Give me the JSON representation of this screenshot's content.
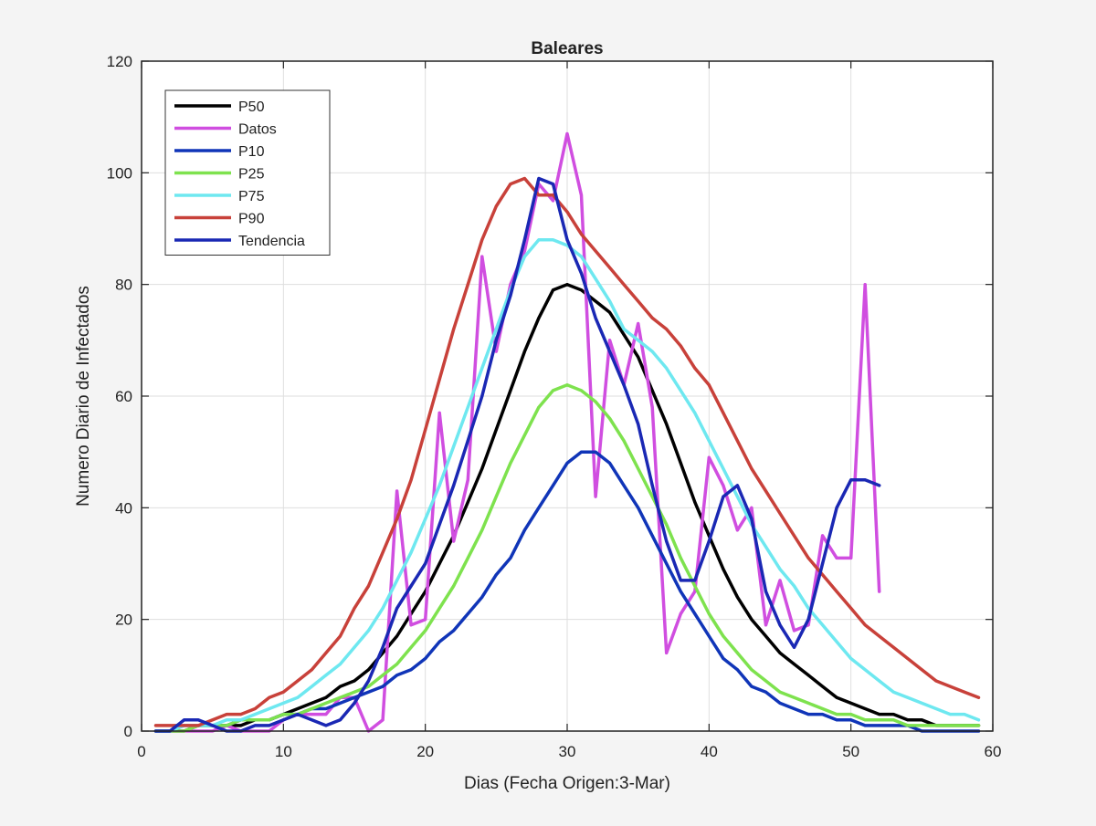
{
  "chart_data": {
    "type": "line",
    "title": "Baleares",
    "xlabel": "Dias (Fecha Origen:3-Mar)",
    "ylabel": "Numero Diario de Infectados",
    "xlim": [
      0,
      60
    ],
    "ylim": [
      0,
      120
    ],
    "xticks": [
      0,
      10,
      20,
      30,
      40,
      50,
      60
    ],
    "yticks": [
      0,
      20,
      40,
      60,
      80,
      100,
      120
    ],
    "grid": true,
    "legend_position": "top-left",
    "series": [
      {
        "name": "P50",
        "color": "#000000",
        "x": [
          1,
          2,
          3,
          4,
          5,
          6,
          7,
          8,
          9,
          10,
          11,
          12,
          13,
          14,
          15,
          16,
          17,
          18,
          19,
          20,
          21,
          22,
          23,
          24,
          25,
          26,
          27,
          28,
          29,
          30,
          31,
          32,
          33,
          34,
          35,
          36,
          37,
          38,
          39,
          40,
          41,
          42,
          43,
          44,
          45,
          46,
          47,
          48,
          49,
          50,
          51,
          52,
          53,
          54,
          55,
          56,
          57,
          58,
          59
        ],
        "y": [
          0,
          0,
          0,
          1,
          1,
          1,
          1,
          2,
          2,
          3,
          4,
          5,
          6,
          8,
          9,
          11,
          14,
          17,
          21,
          25,
          30,
          35,
          41,
          47,
          54,
          61,
          68,
          74,
          79,
          80,
          79,
          77,
          75,
          71,
          67,
          61,
          55,
          48,
          41,
          35,
          29,
          24,
          20,
          17,
          14,
          12,
          10,
          8,
          6,
          5,
          4,
          3,
          3,
          2,
          2,
          1,
          1,
          1,
          1
        ]
      },
      {
        "name": "Datos",
        "color": "#d04ee0",
        "x": [
          1,
          2,
          3,
          4,
          5,
          6,
          7,
          8,
          9,
          10,
          11,
          12,
          13,
          14,
          15,
          16,
          17,
          18,
          19,
          20,
          21,
          22,
          23,
          24,
          25,
          26,
          27,
          28,
          29,
          30,
          31,
          32,
          33,
          34,
          35,
          36,
          37,
          38,
          39,
          40,
          41,
          42,
          43,
          44,
          45,
          46,
          47,
          48,
          49,
          50,
          51,
          52
        ],
        "y": [
          0,
          0,
          0,
          0,
          0,
          1,
          0,
          0,
          0,
          2,
          3,
          3,
          3,
          6,
          6,
          0,
          2,
          43,
          19,
          20,
          57,
          34,
          45,
          85,
          68,
          80,
          86,
          98,
          95,
          107,
          96,
          42,
          70,
          62,
          73,
          58,
          14,
          21,
          25,
          49,
          44,
          36,
          40,
          19,
          27,
          18,
          19,
          35,
          31,
          31,
          80,
          25
        ]
      },
      {
        "name": "P10",
        "color": "#1035b8",
        "x": [
          1,
          2,
          3,
          4,
          5,
          6,
          7,
          8,
          9,
          10,
          11,
          12,
          13,
          14,
          15,
          16,
          17,
          18,
          19,
          20,
          21,
          22,
          23,
          24,
          25,
          26,
          27,
          28,
          29,
          30,
          31,
          32,
          33,
          34,
          35,
          36,
          37,
          38,
          39,
          40,
          41,
          42,
          43,
          44,
          45,
          46,
          47,
          48,
          49,
          50,
          51,
          52,
          53,
          54,
          55,
          56,
          57,
          58,
          59
        ],
        "y": [
          0,
          0,
          1,
          1,
          1,
          1,
          2,
          2,
          2,
          3,
          3,
          4,
          4,
          5,
          6,
          7,
          8,
          10,
          11,
          13,
          16,
          18,
          21,
          24,
          28,
          31,
          36,
          40,
          44,
          48,
          50,
          50,
          48,
          44,
          40,
          35,
          30,
          25,
          21,
          17,
          13,
          11,
          8,
          7,
          5,
          4,
          3,
          3,
          2,
          2,
          1,
          1,
          1,
          1,
          0,
          0,
          0,
          0,
          0
        ]
      },
      {
        "name": "P25",
        "color": "#7ee24e",
        "x": [
          1,
          2,
          3,
          4,
          5,
          6,
          7,
          8,
          9,
          10,
          11,
          12,
          13,
          14,
          15,
          16,
          17,
          18,
          19,
          20,
          21,
          22,
          23,
          24,
          25,
          26,
          27,
          28,
          29,
          30,
          31,
          32,
          33,
          34,
          35,
          36,
          37,
          38,
          39,
          40,
          41,
          42,
          43,
          44,
          45,
          46,
          47,
          48,
          49,
          50,
          51,
          52,
          53,
          54,
          55,
          56,
          57,
          58,
          59
        ],
        "y": [
          0,
          0,
          0,
          1,
          1,
          1,
          2,
          2,
          2,
          3,
          3,
          4,
          5,
          6,
          7,
          8,
          10,
          12,
          15,
          18,
          22,
          26,
          31,
          36,
          42,
          48,
          53,
          58,
          61,
          62,
          61,
          59,
          56,
          52,
          47,
          42,
          37,
          31,
          26,
          21,
          17,
          14,
          11,
          9,
          7,
          6,
          5,
          4,
          3,
          3,
          2,
          2,
          2,
          1,
          1,
          1,
          1,
          1,
          1
        ]
      },
      {
        "name": "P75",
        "color": "#6ee8f0",
        "x": [
          1,
          2,
          3,
          4,
          5,
          6,
          7,
          8,
          9,
          10,
          11,
          12,
          13,
          14,
          15,
          16,
          17,
          18,
          19,
          20,
          21,
          22,
          23,
          24,
          25,
          26,
          27,
          28,
          29,
          30,
          31,
          32,
          33,
          34,
          35,
          36,
          37,
          38,
          39,
          40,
          41,
          42,
          43,
          44,
          45,
          46,
          47,
          48,
          49,
          50,
          51,
          52,
          53,
          54,
          55,
          56,
          57,
          58,
          59
        ],
        "y": [
          0,
          0,
          1,
          1,
          1,
          2,
          2,
          3,
          4,
          5,
          6,
          8,
          10,
          12,
          15,
          18,
          22,
          27,
          32,
          38,
          44,
          51,
          58,
          65,
          72,
          79,
          85,
          88,
          88,
          87,
          85,
          81,
          77,
          72,
          70,
          68,
          65,
          61,
          57,
          52,
          47,
          42,
          37,
          33,
          29,
          26,
          22,
          19,
          16,
          13,
          11,
          9,
          7,
          6,
          5,
          4,
          3,
          3,
          2
        ]
      },
      {
        "name": "P90",
        "color": "#c8413a",
        "x": [
          1,
          2,
          3,
          4,
          5,
          6,
          7,
          8,
          9,
          10,
          11,
          12,
          13,
          14,
          15,
          16,
          17,
          18,
          19,
          20,
          21,
          22,
          23,
          24,
          25,
          26,
          27,
          28,
          29,
          30,
          31,
          32,
          33,
          34,
          35,
          36,
          37,
          38,
          39,
          40,
          41,
          42,
          43,
          44,
          45,
          46,
          47,
          48,
          49,
          50,
          51,
          52,
          53,
          54,
          55,
          56,
          57,
          58,
          59
        ],
        "y": [
          1,
          1,
          1,
          1,
          2,
          3,
          3,
          4,
          6,
          7,
          9,
          11,
          14,
          17,
          22,
          26,
          32,
          38,
          45,
          54,
          63,
          72,
          80,
          88,
          94,
          98,
          99,
          96,
          96,
          93,
          89,
          86,
          83,
          80,
          77,
          74,
          72,
          69,
          65,
          62,
          57,
          52,
          47,
          43,
          39,
          35,
          31,
          28,
          25,
          22,
          19,
          17,
          15,
          13,
          11,
          9,
          8,
          7,
          6
        ]
      },
      {
        "name": "Tendencia",
        "color": "#1a28b4",
        "x": [
          1,
          2,
          3,
          4,
          5,
          6,
          7,
          8,
          9,
          10,
          11,
          12,
          13,
          14,
          15,
          16,
          17,
          18,
          19,
          20,
          21,
          22,
          23,
          24,
          25,
          26,
          27,
          28,
          29,
          30,
          31,
          32,
          33,
          34,
          35,
          36,
          37,
          38,
          39,
          40,
          41,
          42,
          43,
          44,
          45,
          46,
          47,
          48,
          49,
          50,
          51,
          52
        ],
        "y": [
          0,
          0,
          2,
          2,
          1,
          0,
          0,
          1,
          1,
          2,
          3,
          2,
          1,
          2,
          5,
          9,
          15,
          22,
          26,
          30,
          37,
          44,
          52,
          60,
          70,
          78,
          88,
          99,
          98,
          88,
          82,
          74,
          68,
          62,
          55,
          44,
          34,
          27,
          27,
          34,
          42,
          44,
          38,
          25,
          19,
          15,
          20,
          30,
          40,
          45,
          45,
          44
        ]
      }
    ]
  }
}
